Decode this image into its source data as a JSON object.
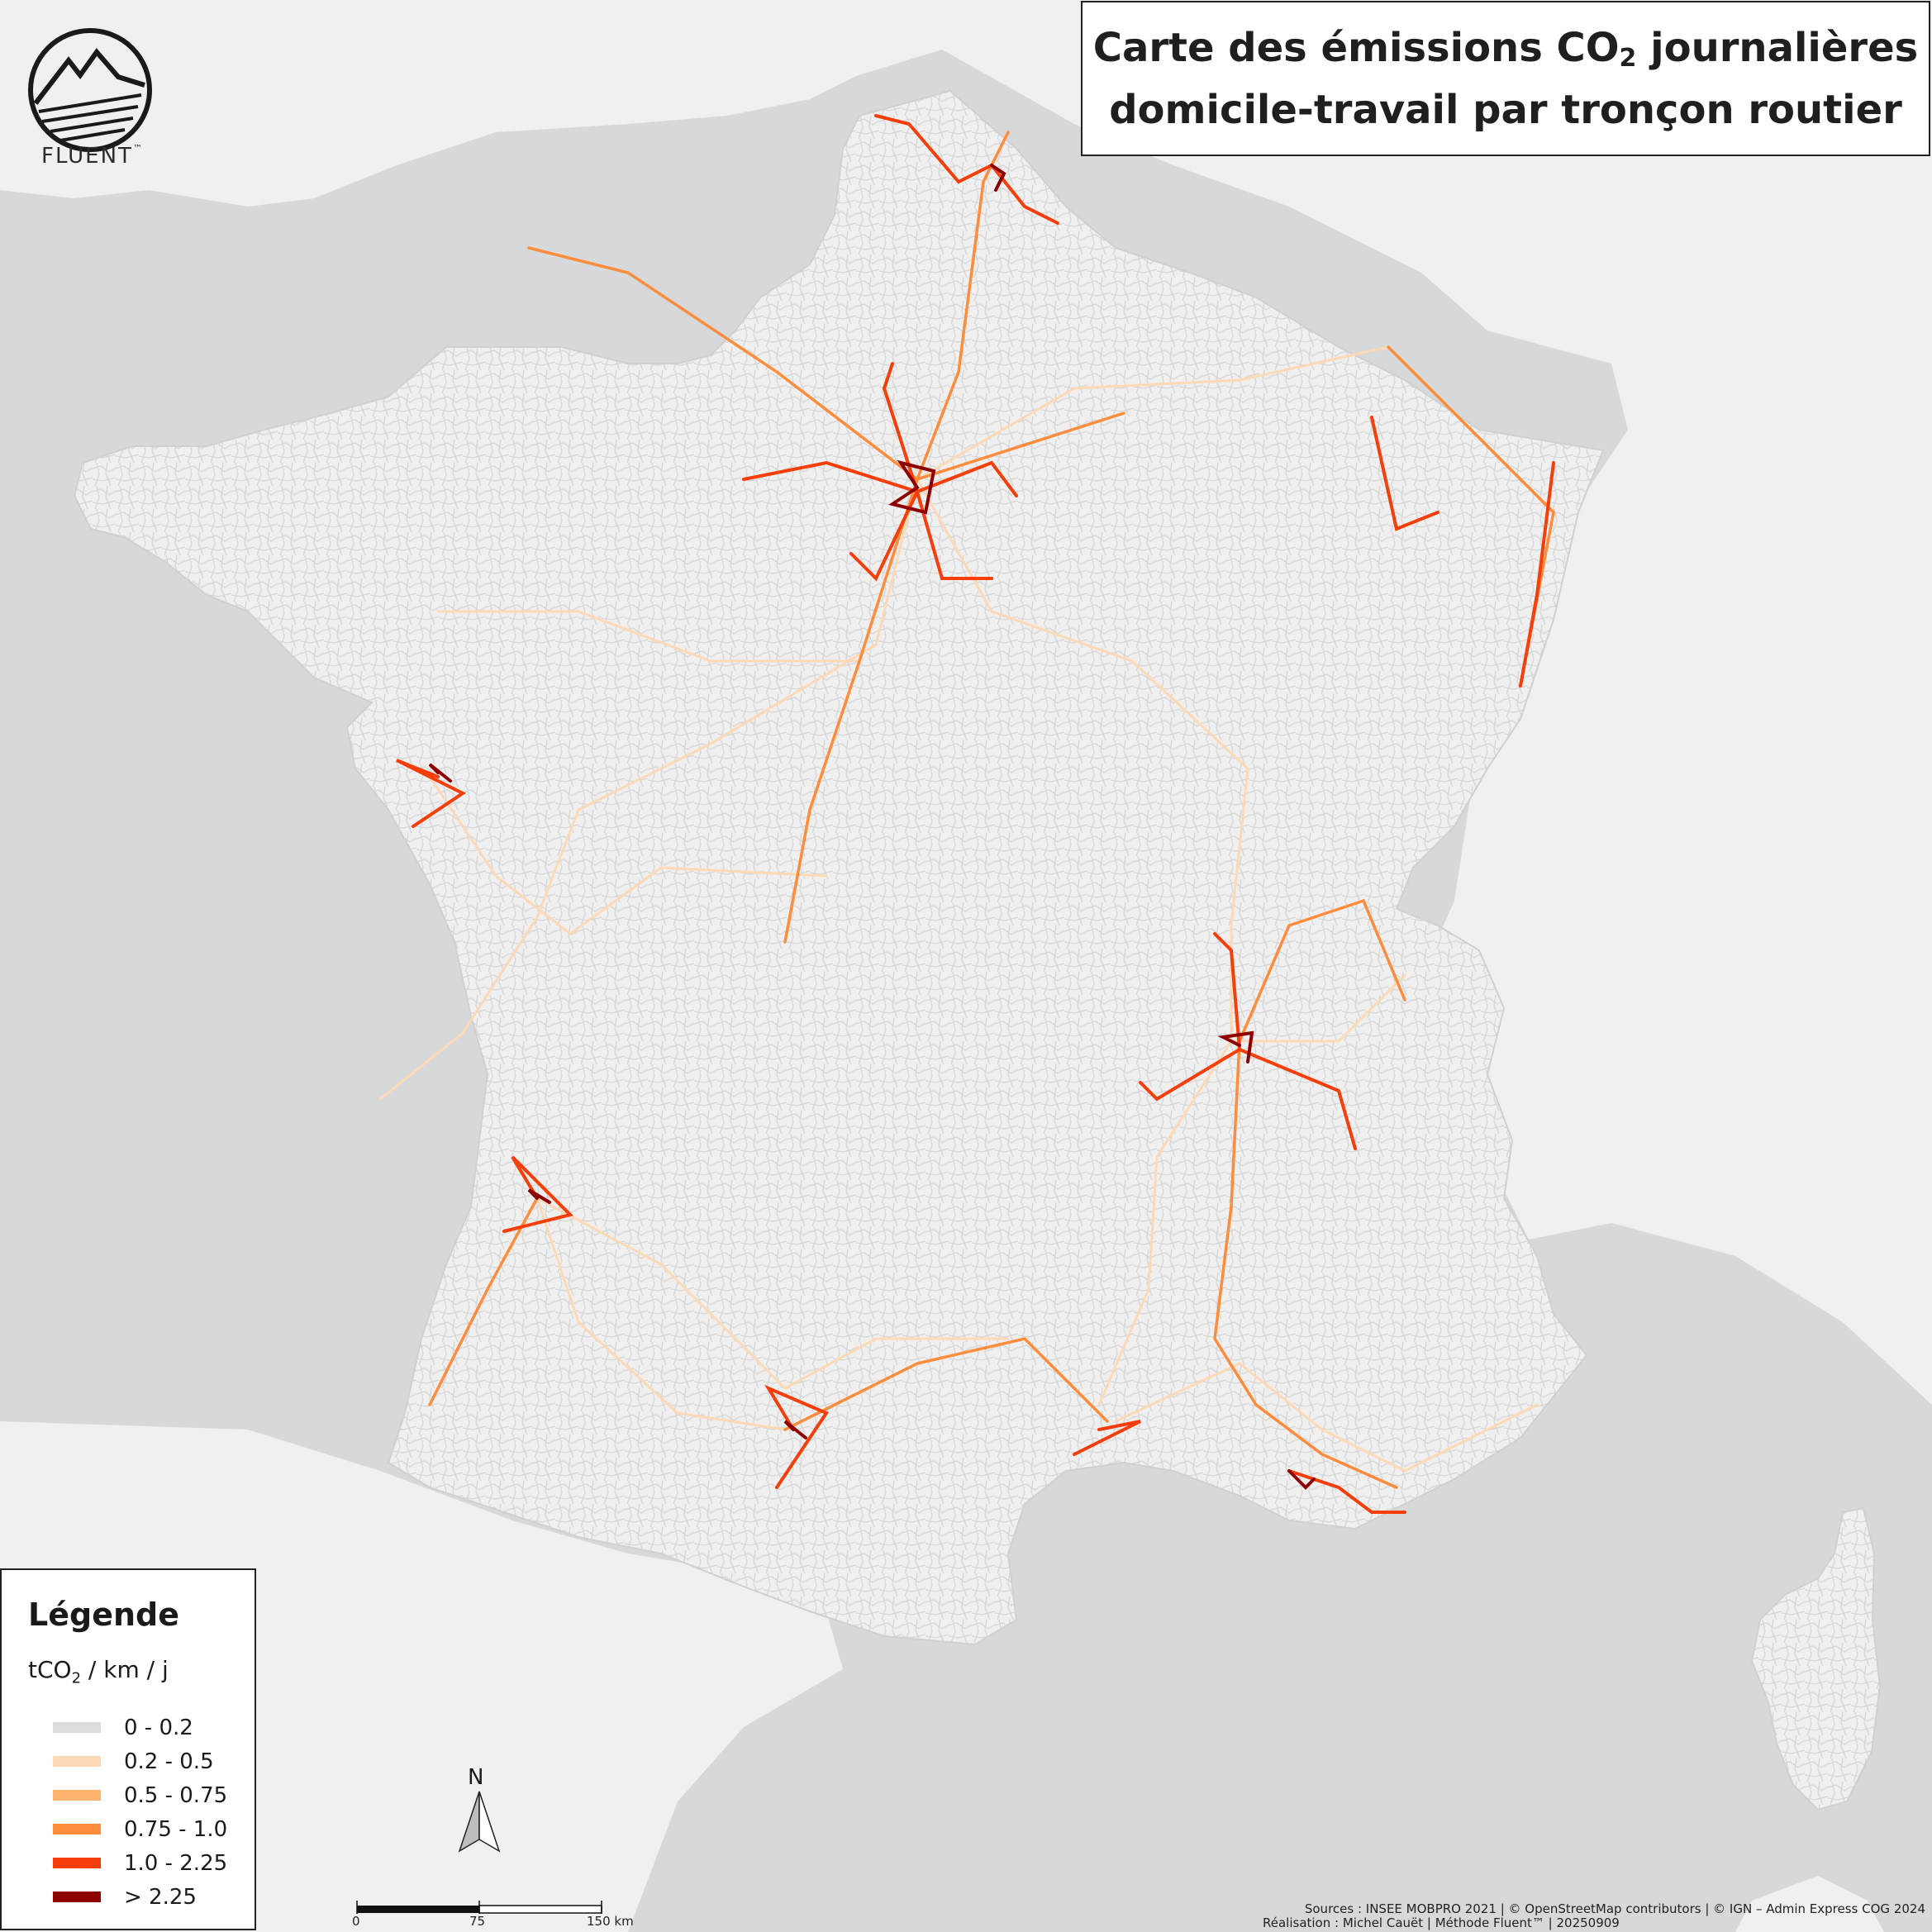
{
  "title": {
    "line1_pre": "Carte des émissions CO",
    "line1_sub": "2",
    "line1_post": " journalières",
    "line2": "domicile-travail par tronçon routier"
  },
  "logo": {
    "name": "FLUENT",
    "mark": "™",
    "icon": "mountain-logo-icon"
  },
  "legend": {
    "title": "Légende",
    "unit_pre": "tCO",
    "unit_sub": "2",
    "unit_post": " / km / j",
    "items": [
      {
        "label": "0 - 0.2",
        "color": "#dcdcdc"
      },
      {
        "label": "0.2 - 0.5",
        "color": "#fdd9b5"
      },
      {
        "label": "0.5 - 0.75",
        "color": "#fdb26e"
      },
      {
        "label": "0.75 - 1.0",
        "color": "#fd8d3c"
      },
      {
        "label": "1.0 - 2.25",
        "color": "#f63e0a"
      },
      {
        "label": "> 2.25",
        "color": "#8e0000"
      }
    ]
  },
  "north_arrow": {
    "label": "N",
    "icon": "north-arrow-icon"
  },
  "scale_bar": {
    "ticks": [
      "0",
      "75",
      "150 km"
    ]
  },
  "sources": "Sources : INSEE MOBPRO 2021 | © OpenStreetMap contributors | © IGN – Admin Express COG 2024",
  "credits": "Réalisation : Michel Cauët | Méthode Fluent™ | 20250909",
  "colors": {
    "sea": "#d7d8da",
    "land_neighbors": "#f0f0f0",
    "france_fill": "#e6e6e6",
    "road_low": "#dcdcdc",
    "road_mid": "#fdb26e",
    "road_high": "#f63e0a",
    "road_max": "#8e0000"
  }
}
